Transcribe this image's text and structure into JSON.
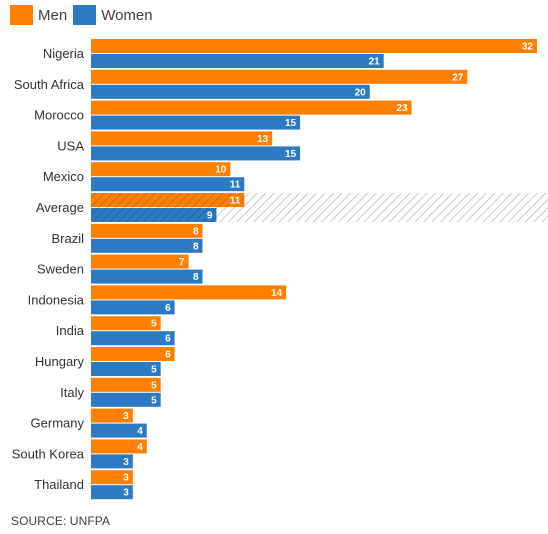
{
  "chart_data": {
    "type": "bar",
    "orientation": "horizontal",
    "categories": [
      "Nigeria",
      "South Africa",
      "Morocco",
      "USA",
      "Mexico",
      "Average",
      "Brazil",
      "Sweden",
      "Indonesia",
      "India",
      "Hungary",
      "Italy",
      "Germany",
      "South Korea",
      "Thailand"
    ],
    "series": [
      {
        "name": "Men",
        "color": "#ff7f00",
        "values": [
          32,
          27,
          23,
          13,
          10,
          11,
          8,
          7,
          14,
          5,
          6,
          5,
          3,
          4,
          3
        ]
      },
      {
        "name": "Women",
        "color": "#2b7ac2",
        "values": [
          21,
          20,
          15,
          15,
          11,
          9,
          8,
          8,
          6,
          6,
          5,
          5,
          4,
          3,
          3
        ]
      }
    ],
    "highlight_category": "Average",
    "data_labels": true,
    "legend_position": "top-left",
    "grid": false,
    "xlim": [
      0,
      32
    ]
  },
  "source": "SOURCE: UNFPA"
}
